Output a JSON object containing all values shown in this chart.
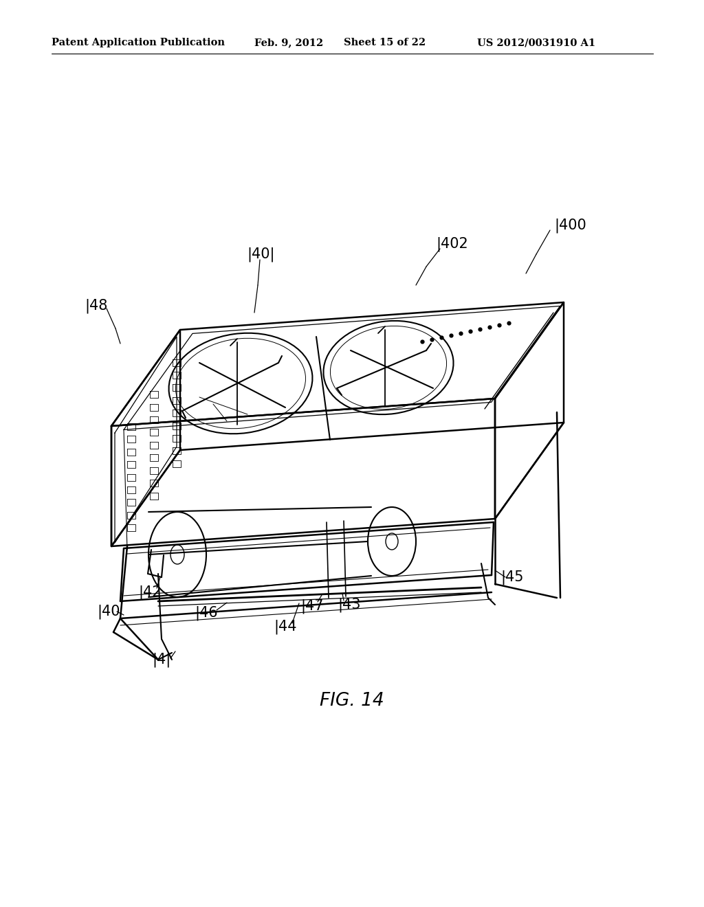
{
  "title_left": "Patent Application Publication",
  "title_mid": "Feb. 9, 2012   Sheet 15 of 22",
  "title_right": "US 2012/0031910 A1",
  "fig_label": "FIG. 14",
  "background_color": "#ffffff",
  "line_color": "#000000",
  "header_fontsize": 10.5,
  "label_fontsize": 13
}
